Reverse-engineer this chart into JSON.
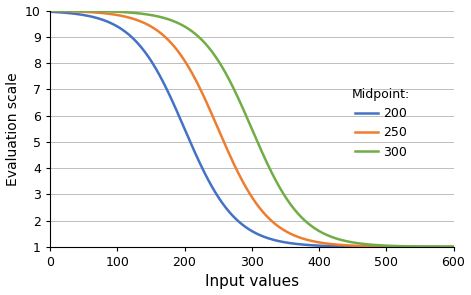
{
  "title": "",
  "xlabel": "Input values",
  "ylabel": "Evaluation scale",
  "xlim": [
    0,
    600
  ],
  "ylim": [
    1,
    10
  ],
  "xticks": [
    0,
    100,
    200,
    300,
    400,
    500,
    600
  ],
  "yticks": [
    1,
    2,
    3,
    4,
    5,
    6,
    7,
    8,
    9,
    10
  ],
  "curves": [
    {
      "midpoint": 200,
      "color": "#4472C4",
      "label": "200"
    },
    {
      "midpoint": 250,
      "color": "#ED7D31",
      "label": "250"
    },
    {
      "midpoint": 300,
      "color": "#70AD47",
      "label": "300"
    }
  ],
  "legend_title": "Midpoint:",
  "spread": 38,
  "y_min": 1,
  "y_max": 10,
  "background_color": "#FFFFFF",
  "grid_color": "#BFBFBF",
  "xlabel_fontsize": 11,
  "ylabel_fontsize": 10,
  "tick_fontsize": 9,
  "legend_fontsize": 9,
  "legend_title_fontsize": 9
}
